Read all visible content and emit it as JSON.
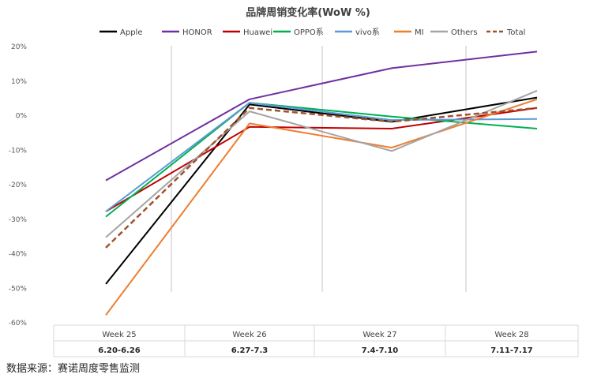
{
  "chart_data": {
    "type": "line",
    "title": "品牌周销变化率(WoW %)",
    "categories": [
      "Week 25",
      "Week 26",
      "Week 27",
      "Week 28"
    ],
    "date_ranges": [
      "6.20-6.26",
      "6.27-7.3",
      "7.4-7.10",
      "7.11-7.17"
    ],
    "ylim": [
      -60,
      20
    ],
    "y_ticks": [
      "-60%",
      "-50%",
      "-40%",
      "-30%",
      "-20%",
      "-10%",
      "0%",
      "10%",
      "20%"
    ],
    "grid": "vertical",
    "legend_position": "top",
    "series": [
      {
        "name": "Apple",
        "color": "#000000",
        "dashed": false,
        "values": [
          -49,
          3,
          -2,
          5
        ]
      },
      {
        "name": "HONOR",
        "color": "#7030A0",
        "dashed": false,
        "values": [
          -19,
          4.5,
          13.5,
          18.3
        ]
      },
      {
        "name": "Huawei",
        "color": "#C00000",
        "dashed": false,
        "values": [
          -28,
          -3.5,
          -4,
          2
        ]
      },
      {
        "name": "OPPO系",
        "color": "#00B050",
        "dashed": false,
        "values": [
          -29.5,
          3.5,
          -0.5,
          -4
        ]
      },
      {
        "name": "vivo系",
        "color": "#5B9BD5",
        "dashed": false,
        "values": [
          -28,
          3.5,
          -1.5,
          -1.2
        ]
      },
      {
        "name": "MI",
        "color": "#ED7D31",
        "dashed": false,
        "values": [
          -58,
          -2.5,
          -9.5,
          4.5
        ]
      },
      {
        "name": "Others",
        "color": "#A5A5A5",
        "dashed": false,
        "values": [
          -35.5,
          1,
          -10.5,
          7
        ]
      },
      {
        "name": "Total",
        "color": "#A0522D",
        "dashed": true,
        "values": [
          -38.5,
          2,
          -2,
          2
        ]
      }
    ]
  },
  "footer": {
    "source": "数据来源：赛诺周度零售监测"
  }
}
